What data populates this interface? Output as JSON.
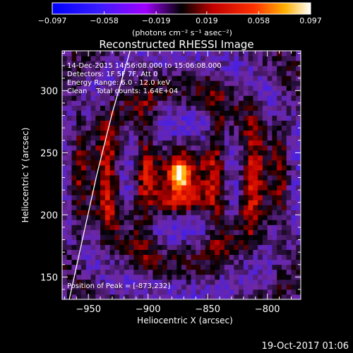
{
  "chart_data": {
    "type": "heatmap",
    "title": "Reconstructed RHESSI Image",
    "xlabel": "Heliocentric X (arcsec)",
    "ylabel": "Heliocentric Y (arcsec)",
    "xlim": [
      -972,
      -772
    ],
    "ylim": [
      132,
      332
    ],
    "xticks": [
      {
        "value": -950,
        "label": "−950"
      },
      {
        "value": -900,
        "label": "−900"
      },
      {
        "value": -850,
        "label": "−850"
      },
      {
        "value": -800,
        "label": "−800"
      }
    ],
    "yticks": [
      {
        "value": 150,
        "label": "150"
      },
      {
        "value": 200,
        "label": "200"
      },
      {
        "value": 250,
        "label": "250"
      },
      {
        "value": 300,
        "label": "300"
      }
    ],
    "colorbar": {
      "min": -0.097,
      "max": 0.097,
      "tick_labels": [
        "−0.097",
        "−0.058",
        "−0.019",
        "0.019",
        "0.058",
        "0.097"
      ],
      "unit_text": "(photons cm⁻² s⁻¹ asec⁻²)"
    },
    "annotations": [
      "14-Dec-2015 14:56:08.000 to 15:06:08.000",
      "Detectors: 1F 5F 7F, Att 0",
      "Energy Range: 6.0 - 12.0 keV",
      "Clean    Total counts: 1.64E+04"
    ],
    "peak_text": "Position of Peak = [-873,232]",
    "peak": {
      "x": -873,
      "y": 232,
      "value": 0.097
    },
    "limb_points": [
      [
        -966,
        132
      ],
      [
        -955,
        180
      ],
      [
        -943,
        232
      ],
      [
        -930,
        282
      ],
      [
        -915,
        332
      ]
    ],
    "grid": false
  },
  "footer": {
    "date": "19-Oct-2017 01:06"
  }
}
